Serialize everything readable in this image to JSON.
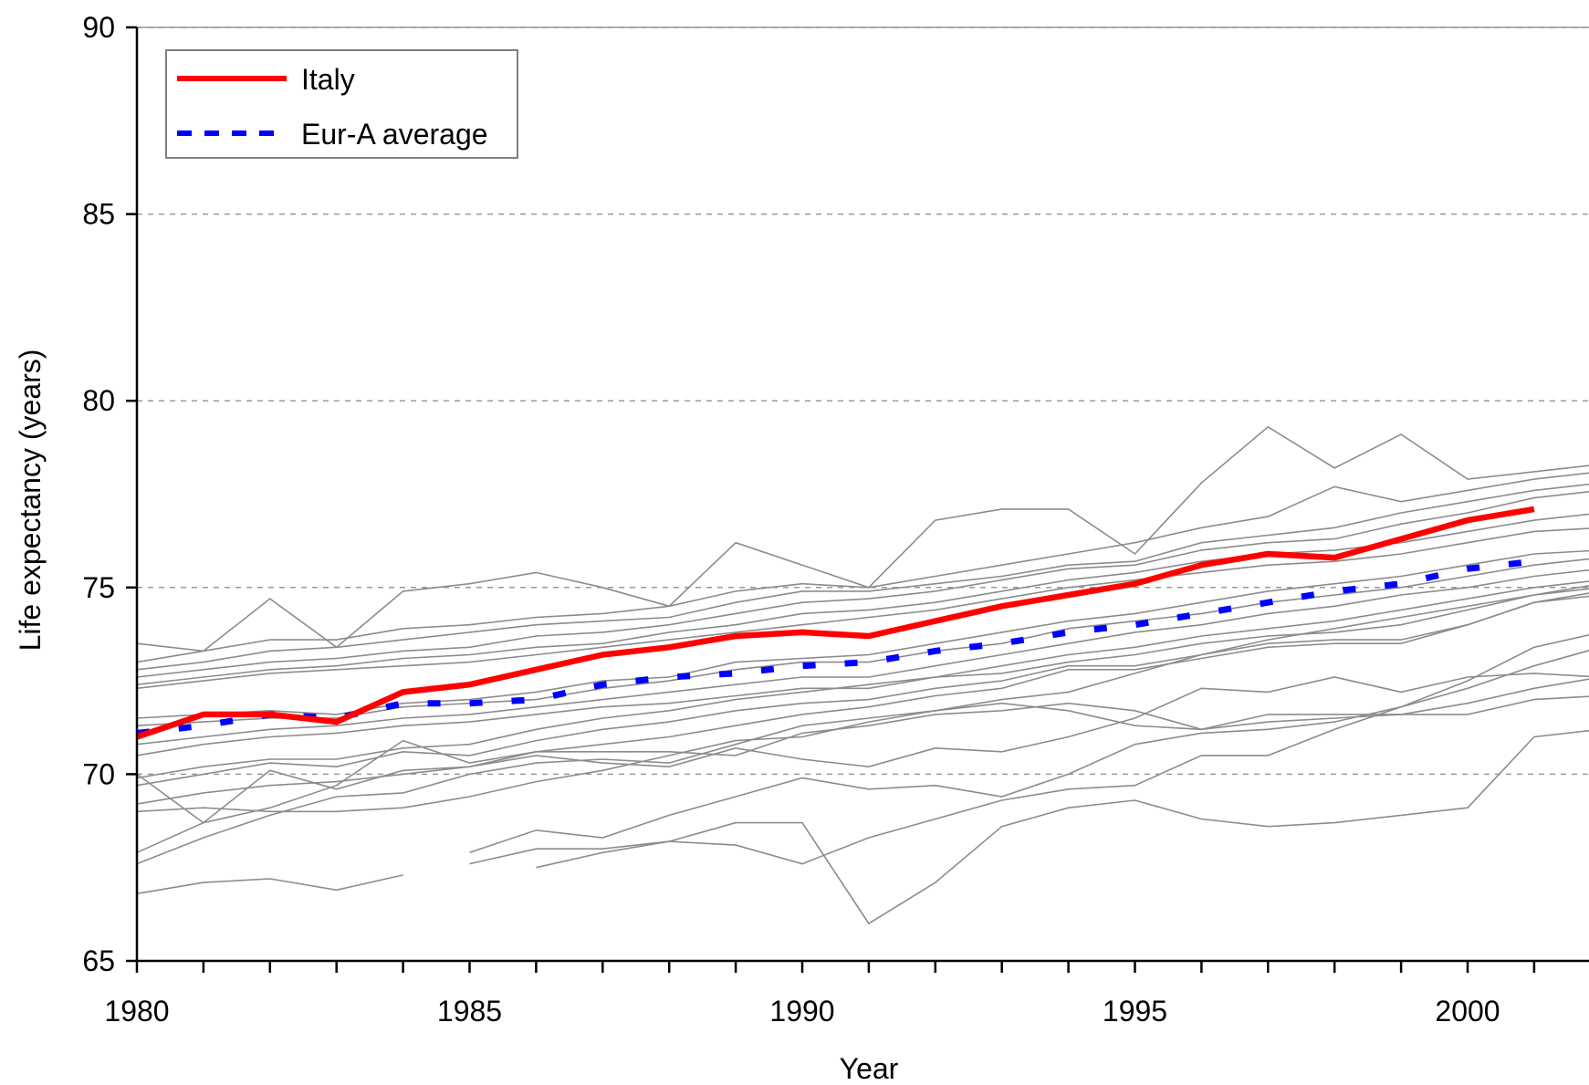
{
  "chart_data": {
    "type": "line",
    "xlabel": "Year",
    "ylabel": "Life expectancy (years)",
    "xlim": [
      1980,
      2002
    ],
    "ylim": [
      65,
      90
    ],
    "x_ticks": [
      1980,
      1985,
      1990,
      1995,
      2000
    ],
    "y_ticks": [
      65,
      70,
      75,
      80,
      85,
      90
    ],
    "grid": "horizontal dashed",
    "legend": "top-left",
    "colors": {
      "italy": "#ff0000",
      "average": "#0000ff",
      "others": "#8c8c8c",
      "grid": "#999999"
    },
    "series": [
      {
        "name": "Italy",
        "style": "solid",
        "color": "#ff0000",
        "x": [
          1980,
          1981,
          1982,
          1983,
          1984,
          1985,
          1986,
          1987,
          1988,
          1989,
          1990,
          1991,
          1992,
          1993,
          1994,
          1995,
          1996,
          1997,
          1998,
          1999,
          2000,
          2001
        ],
        "y": [
          71.0,
          71.6,
          71.6,
          71.4,
          72.2,
          72.4,
          72.8,
          73.2,
          73.4,
          73.7,
          73.8,
          73.7,
          74.1,
          74.5,
          74.8,
          75.1,
          75.6,
          75.9,
          75.8,
          76.3,
          76.8,
          77.1
        ]
      },
      {
        "name": "Eur-A average",
        "style": "dashed",
        "color": "#0000ff",
        "x": [
          1980,
          1981,
          1982,
          1983,
          1984,
          1985,
          1986,
          1987,
          1988,
          1989,
          1990,
          1991,
          1992,
          1993,
          1994,
          1995,
          1996,
          1997,
          1998,
          1999,
          2000,
          2001
        ],
        "y": [
          71.1,
          71.3,
          71.6,
          71.5,
          71.9,
          71.9,
          72.0,
          72.4,
          72.6,
          72.7,
          72.9,
          73.0,
          73.3,
          73.5,
          73.8,
          74.0,
          74.3,
          74.6,
          74.9,
          75.1,
          75.5,
          75.7
        ]
      }
    ],
    "background_series": [
      {
        "x": [
          1980,
          1981,
          1982,
          1983,
          1984,
          1985,
          1986,
          1987,
          1988,
          1989,
          1990,
          1991,
          1992,
          1993,
          1994,
          1995,
          1996,
          1997,
          1998,
          1999,
          2000,
          2001,
          2002
        ],
        "y": [
          73.5,
          73.3,
          74.7,
          73.4,
          74.9,
          75.1,
          75.4,
          75.0,
          74.5,
          76.2,
          75.6,
          75.0,
          76.8,
          77.1,
          77.1,
          75.9,
          77.8,
          79.3,
          78.2,
          79.1,
          77.9,
          78.1,
          78.3
        ]
      },
      {
        "x": [
          1980,
          1981,
          1982,
          1983,
          1984,
          1985,
          1986,
          1987,
          1988,
          1989,
          1990,
          1991,
          1992,
          1993,
          1994,
          1995,
          1996,
          1997,
          1998,
          1999,
          2000,
          2001,
          2002
        ],
        "y": [
          73.0,
          73.3,
          73.6,
          73.6,
          73.9,
          74.0,
          74.2,
          74.3,
          74.5,
          74.9,
          75.1,
          75.0,
          75.3,
          75.6,
          75.9,
          76.2,
          76.6,
          76.9,
          77.7,
          77.3,
          77.6,
          77.9,
          78.1
        ]
      },
      {
        "x": [
          1980,
          1981,
          1982,
          1983,
          1984,
          1985,
          1986,
          1987,
          1988,
          1989,
          1990,
          1991,
          1992,
          1993,
          1994,
          1995,
          1996,
          1997,
          1998,
          1999,
          2000,
          2001,
          2002
        ],
        "y": [
          72.8,
          73.0,
          73.3,
          73.4,
          73.6,
          73.8,
          74.0,
          74.1,
          74.2,
          74.6,
          74.9,
          74.9,
          75.1,
          75.3,
          75.6,
          75.7,
          76.2,
          76.4,
          76.6,
          77.0,
          77.3,
          77.6,
          77.8
        ]
      },
      {
        "x": [
          1980,
          1981,
          1982,
          1983,
          1984,
          1985,
          1986,
          1987,
          1988,
          1989,
          1990,
          1991,
          1992,
          1993,
          1994,
          1995,
          1996,
          1997,
          1998,
          1999,
          2000,
          2001,
          2002
        ],
        "y": [
          72.6,
          72.8,
          73.0,
          73.1,
          73.3,
          73.4,
          73.7,
          73.8,
          74.0,
          74.3,
          74.6,
          74.7,
          74.9,
          75.2,
          75.5,
          75.6,
          76.0,
          76.2,
          76.3,
          76.7,
          77.0,
          77.4,
          77.6
        ]
      },
      {
        "x": [
          1980,
          1981,
          1982,
          1983,
          1984,
          1985,
          1986,
          1987,
          1988,
          1989,
          1990,
          1991,
          1992,
          1993,
          1994,
          1995,
          1996,
          1997,
          1998,
          1999,
          2000,
          2001,
          2002
        ],
        "y": [
          72.4,
          72.6,
          72.8,
          72.9,
          73.1,
          73.2,
          73.4,
          73.5,
          73.8,
          74.0,
          74.3,
          74.4,
          74.6,
          74.9,
          75.2,
          75.4,
          75.7,
          75.9,
          76.0,
          76.2,
          76.5,
          76.8,
          77.0
        ]
      },
      {
        "x": [
          1980,
          1981,
          1982,
          1983,
          1984,
          1985,
          1986,
          1987,
          1988,
          1989,
          1990,
          1991,
          1992,
          1993,
          1994,
          1995,
          1996,
          1997,
          1998,
          1999,
          2000,
          2001,
          2002
        ],
        "y": [
          72.3,
          72.5,
          72.7,
          72.8,
          72.9,
          73.0,
          73.2,
          73.4,
          73.6,
          73.8,
          74.0,
          74.2,
          74.4,
          74.7,
          75.0,
          75.2,
          75.4,
          75.6,
          75.7,
          75.9,
          76.2,
          76.5,
          76.6
        ]
      },
      {
        "x": [
          1980,
          1981,
          1982,
          1983,
          1984,
          1985,
          1986,
          1987,
          1988,
          1989,
          1990,
          1991,
          1992,
          1993,
          1994,
          1995,
          1996,
          1997,
          1998,
          1999,
          2000,
          2001,
          2002
        ],
        "y": [
          71.5,
          71.6,
          71.7,
          71.6,
          71.9,
          72.0,
          72.2,
          72.5,
          72.6,
          73.0,
          73.1,
          73.2,
          73.5,
          73.8,
          74.1,
          74.3,
          74.6,
          74.9,
          75.1,
          75.3,
          75.6,
          75.9,
          76.0
        ]
      },
      {
        "x": [
          1980,
          1981,
          1982,
          1983,
          1984,
          1985,
          1986,
          1987,
          1988,
          1989,
          1990,
          1991,
          1992,
          1993,
          1994,
          1995,
          1996,
          1997,
          1998,
          1999,
          2000,
          2001,
          2002
        ],
        "y": [
          71.3,
          71.4,
          71.5,
          71.5,
          71.8,
          71.9,
          72.0,
          72.3,
          72.5,
          72.8,
          73.0,
          73.0,
          73.3,
          73.5,
          73.9,
          74.1,
          74.3,
          74.6,
          74.8,
          75.0,
          75.3,
          75.6,
          75.8
        ]
      },
      {
        "x": [
          1980,
          1981,
          1982,
          1983,
          1984,
          1985,
          1986,
          1987,
          1988,
          1989,
          1990,
          1991,
          1992,
          1993,
          1994,
          1995,
          1996,
          1997,
          1998,
          1999,
          2000,
          2001,
          2002
        ],
        "y": [
          70.8,
          71.0,
          71.2,
          71.3,
          71.5,
          71.6,
          71.8,
          72.0,
          72.2,
          72.4,
          72.6,
          72.6,
          72.9,
          73.2,
          73.5,
          73.8,
          74.0,
          74.3,
          74.5,
          74.8,
          75.0,
          75.3,
          75.5
        ]
      },
      {
        "x": [
          1980,
          1981,
          1982,
          1983,
          1984,
          1985,
          1986,
          1987,
          1988,
          1989,
          1990,
          1991,
          1992,
          1993,
          1994,
          1995,
          1996,
          1997,
          1998,
          1999,
          2000,
          2001,
          2002
        ],
        "y": [
          70.5,
          70.8,
          71.0,
          71.1,
          71.3,
          71.4,
          71.6,
          71.8,
          71.9,
          72.1,
          72.3,
          72.3,
          72.6,
          72.9,
          73.2,
          73.4,
          73.7,
          73.9,
          74.1,
          74.4,
          74.7,
          75.0,
          75.2
        ]
      },
      {
        "x": [
          1980,
          1981,
          1982,
          1983,
          1984,
          1985,
          1986,
          1987,
          1988,
          1989,
          1990,
          1991,
          1992,
          1993,
          1994,
          1995,
          1996,
          1997,
          1998,
          1999,
          2000,
          2001,
          2002
        ],
        "y": [
          69.9,
          70.2,
          70.4,
          70.4,
          70.7,
          70.8,
          71.2,
          71.5,
          71.7,
          72.0,
          72.2,
          72.4,
          72.6,
          72.7,
          73.0,
          73.2,
          73.5,
          73.7,
          73.8,
          74.0,
          74.4,
          74.8,
          75.0
        ]
      },
      {
        "x": [
          1980,
          1981,
          1982,
          1983,
          1984,
          1985,
          1986,
          1987,
          1988,
          1989,
          1990,
          1991,
          1992,
          1993,
          1994,
          1995,
          1996,
          1997,
          1998,
          1999,
          2000,
          2001,
          2002
        ],
        "y": [
          69.7,
          70.0,
          70.3,
          70.2,
          70.6,
          70.5,
          70.9,
          71.2,
          71.4,
          71.7,
          71.9,
          72.0,
          72.3,
          72.5,
          72.9,
          72.9,
          73.2,
          73.5,
          73.6,
          73.6,
          74.0,
          74.6,
          74.9
        ]
      },
      {
        "x": [
          1980,
          1981,
          1982,
          1983,
          1984,
          1985,
          1986,
          1987,
          1988,
          1989,
          1990,
          1991,
          1992,
          1993,
          1994,
          1995,
          1996,
          1997,
          1998,
          1999,
          2000,
          2001,
          2002
        ],
        "y": [
          69.2,
          69.5,
          69.7,
          69.8,
          70.0,
          70.2,
          70.6,
          70.8,
          71.0,
          71.3,
          71.6,
          71.8,
          72.1,
          72.3,
          72.8,
          72.8,
          73.1,
          73.4,
          73.5,
          73.5,
          74.0,
          74.6,
          74.8
        ]
      },
      {
        "x": [
          1980,
          1981,
          1982,
          1983,
          1984,
          1985,
          1986,
          1987,
          1988,
          1989,
          1990,
          1991,
          1992,
          1993,
          1994,
          1995,
          1996,
          1997,
          1998,
          1999,
          2000,
          2001,
          2002
        ],
        "y": [
          70.0,
          68.7,
          69.1,
          69.7,
          70.9,
          70.3,
          70.6,
          70.6,
          70.6,
          70.5,
          71.1,
          71.3,
          71.6,
          71.7,
          71.9,
          71.7,
          71.2,
          71.4,
          71.5,
          71.6,
          71.9,
          72.3,
          72.6
        ]
      },
      {
        "x": [
          1980,
          1981,
          1982,
          1983,
          1984,
          1985,
          1986,
          1987,
          1988,
          1989,
          1990,
          1991,
          1992,
          1993,
          1994,
          1995,
          1996,
          1997,
          1998,
          1999,
          2000,
          2001,
          2002
        ],
        "y": [
          67.9,
          68.7,
          70.1,
          69.6,
          70.1,
          70.2,
          70.5,
          70.3,
          70.2,
          70.7,
          70.4,
          70.2,
          70.7,
          70.6,
          71.0,
          71.5,
          72.3,
          72.2,
          72.6,
          72.2,
          72.6,
          72.7,
          72.6
        ]
      },
      {
        "x": [
          1980,
          1981,
          1982,
          1983,
          1984,
          1985,
          1986,
          1987,
          1988,
          1989,
          1990,
          1991,
          1992,
          1993,
          1994,
          1995,
          1996,
          1997,
          1998,
          1999,
          2000,
          2001,
          2002
        ],
        "y": [
          67.6,
          68.3,
          68.9,
          69.4,
          69.5,
          70.0,
          70.3,
          70.4,
          70.3,
          70.8,
          71.3,
          71.5,
          71.7,
          71.9,
          71.7,
          71.3,
          71.2,
          71.6,
          71.6,
          71.6,
          71.6,
          72.0,
          72.1
        ]
      },
      {
        "x": [
          1980,
          1981,
          1982,
          1983,
          1984,
          1985,
          1986,
          1987,
          1988,
          1989,
          1990,
          1991,
          1992,
          1993,
          1994,
          1995,
          1996,
          1997,
          1998,
          1999,
          2000,
          2001,
          2002
        ],
        "y": [
          69.0,
          69.1,
          69.0,
          69.0,
          69.1,
          69.4,
          69.8,
          70.1,
          70.5,
          70.9,
          71.0,
          71.4,
          71.7,
          72.0,
          72.2,
          72.7,
          73.2,
          73.6,
          73.9,
          74.2,
          74.5,
          74.8,
          75.1
        ]
      },
      {
        "x": [
          1980,
          1981,
          1982,
          1983,
          1984,
          1985,
          1986,
          1987,
          1988,
          1989,
          1990,
          1991,
          1992,
          1993,
          1994,
          1995,
          1996,
          1997,
          1998,
          1999,
          2000,
          2001,
          2002
        ],
        "y": [
          66.8,
          67.1,
          67.2,
          66.9,
          67.3,
          null,
          null,
          null,
          null,
          null,
          null,
          null,
          null,
          null,
          null,
          null,
          null,
          null,
          null,
          null,
          null,
          null,
          null
        ]
      },
      {
        "x": [
          1985,
          1986,
          1987,
          1988,
          1989,
          1990,
          1991,
          1992,
          1993,
          1994,
          1995,
          1996,
          1997,
          1998,
          1999,
          2000,
          2001,
          2002
        ],
        "y": [
          67.9,
          68.5,
          68.3,
          68.9,
          69.4,
          69.9,
          69.6,
          69.7,
          69.4,
          70.0,
          70.8,
          71.1,
          71.2,
          71.4,
          71.8,
          72.3,
          72.9,
          73.4
        ]
      },
      {
        "x": [
          1985,
          1986,
          1987,
          1988,
          1989,
          1990,
          1991,
          1992,
          1993,
          1994,
          1995,
          1996,
          1997,
          1998,
          1999,
          2000,
          2001,
          2002
        ],
        "y": [
          67.6,
          68.0,
          68.0,
          68.2,
          68.7,
          68.7,
          66.0,
          67.1,
          68.6,
          69.1,
          69.3,
          68.8,
          68.6,
          68.7,
          68.9,
          69.1,
          71.0,
          71.2
        ]
      },
      {
        "x": [
          1986,
          1987,
          1988,
          1989,
          1990,
          1991,
          1992,
          1993,
          1994,
          1995,
          1996,
          1997,
          1998,
          1999,
          2000,
          2001,
          2002
        ],
        "y": [
          67.5,
          67.9,
          68.2,
          68.1,
          67.6,
          68.3,
          68.8,
          69.3,
          69.6,
          69.7,
          70.5,
          70.5,
          71.2,
          71.8,
          72.5,
          73.4,
          73.8
        ]
      }
    ],
    "legend_entries": [
      {
        "label": "Italy",
        "color": "#ff0000",
        "style": "solid"
      },
      {
        "label": "Eur-A average",
        "color": "#0000ff",
        "style": "dashed"
      }
    ]
  }
}
